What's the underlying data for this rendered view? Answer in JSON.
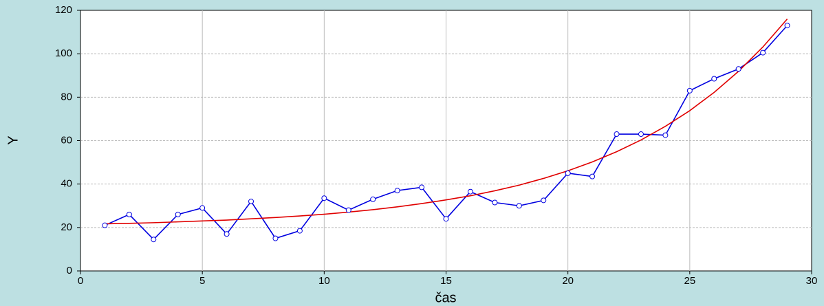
{
  "chart_data": {
    "type": "line",
    "x_label": "čas",
    "y_label": "Y",
    "x": [
      1,
      2,
      3,
      4,
      5,
      6,
      7,
      8,
      9,
      10,
      11,
      12,
      13,
      14,
      15,
      16,
      17,
      18,
      19,
      20,
      21,
      22,
      23,
      24,
      25,
      26,
      27,
      28,
      29
    ],
    "series": [
      {
        "color": "#0000e0",
        "markers": true,
        "values": [
          21,
          26,
          14.5,
          26,
          29,
          17,
          32,
          15,
          18.5,
          33.5,
          28,
          33,
          37,
          38.5,
          24,
          36.5,
          31.5,
          30,
          32.5,
          45,
          43.5,
          63,
          63,
          62.5,
          83,
          88.5,
          93,
          100.5,
          113
        ]
      },
      {
        "color": "#e00000",
        "markers": false,
        "values": [
          21.7,
          21.9,
          22.2,
          22.6,
          23.0,
          23.4,
          24.0,
          24.6,
          25.3,
          26.1,
          27.1,
          28.2,
          29.5,
          31.0,
          32.7,
          34.6,
          36.9,
          39.5,
          42.6,
          46.1,
          50.2,
          54.9,
          60.3,
          66.6,
          73.8,
          82.2,
          91.9,
          103.1,
          116.0
        ]
      }
    ],
    "xlim": [
      0,
      30
    ],
    "xticks": [
      0,
      5,
      10,
      15,
      20,
      25,
      30
    ],
    "ylim": [
      0,
      120
    ],
    "yticks": [
      0,
      20,
      40,
      60,
      80,
      100,
      120
    ],
    "grid": true
  }
}
